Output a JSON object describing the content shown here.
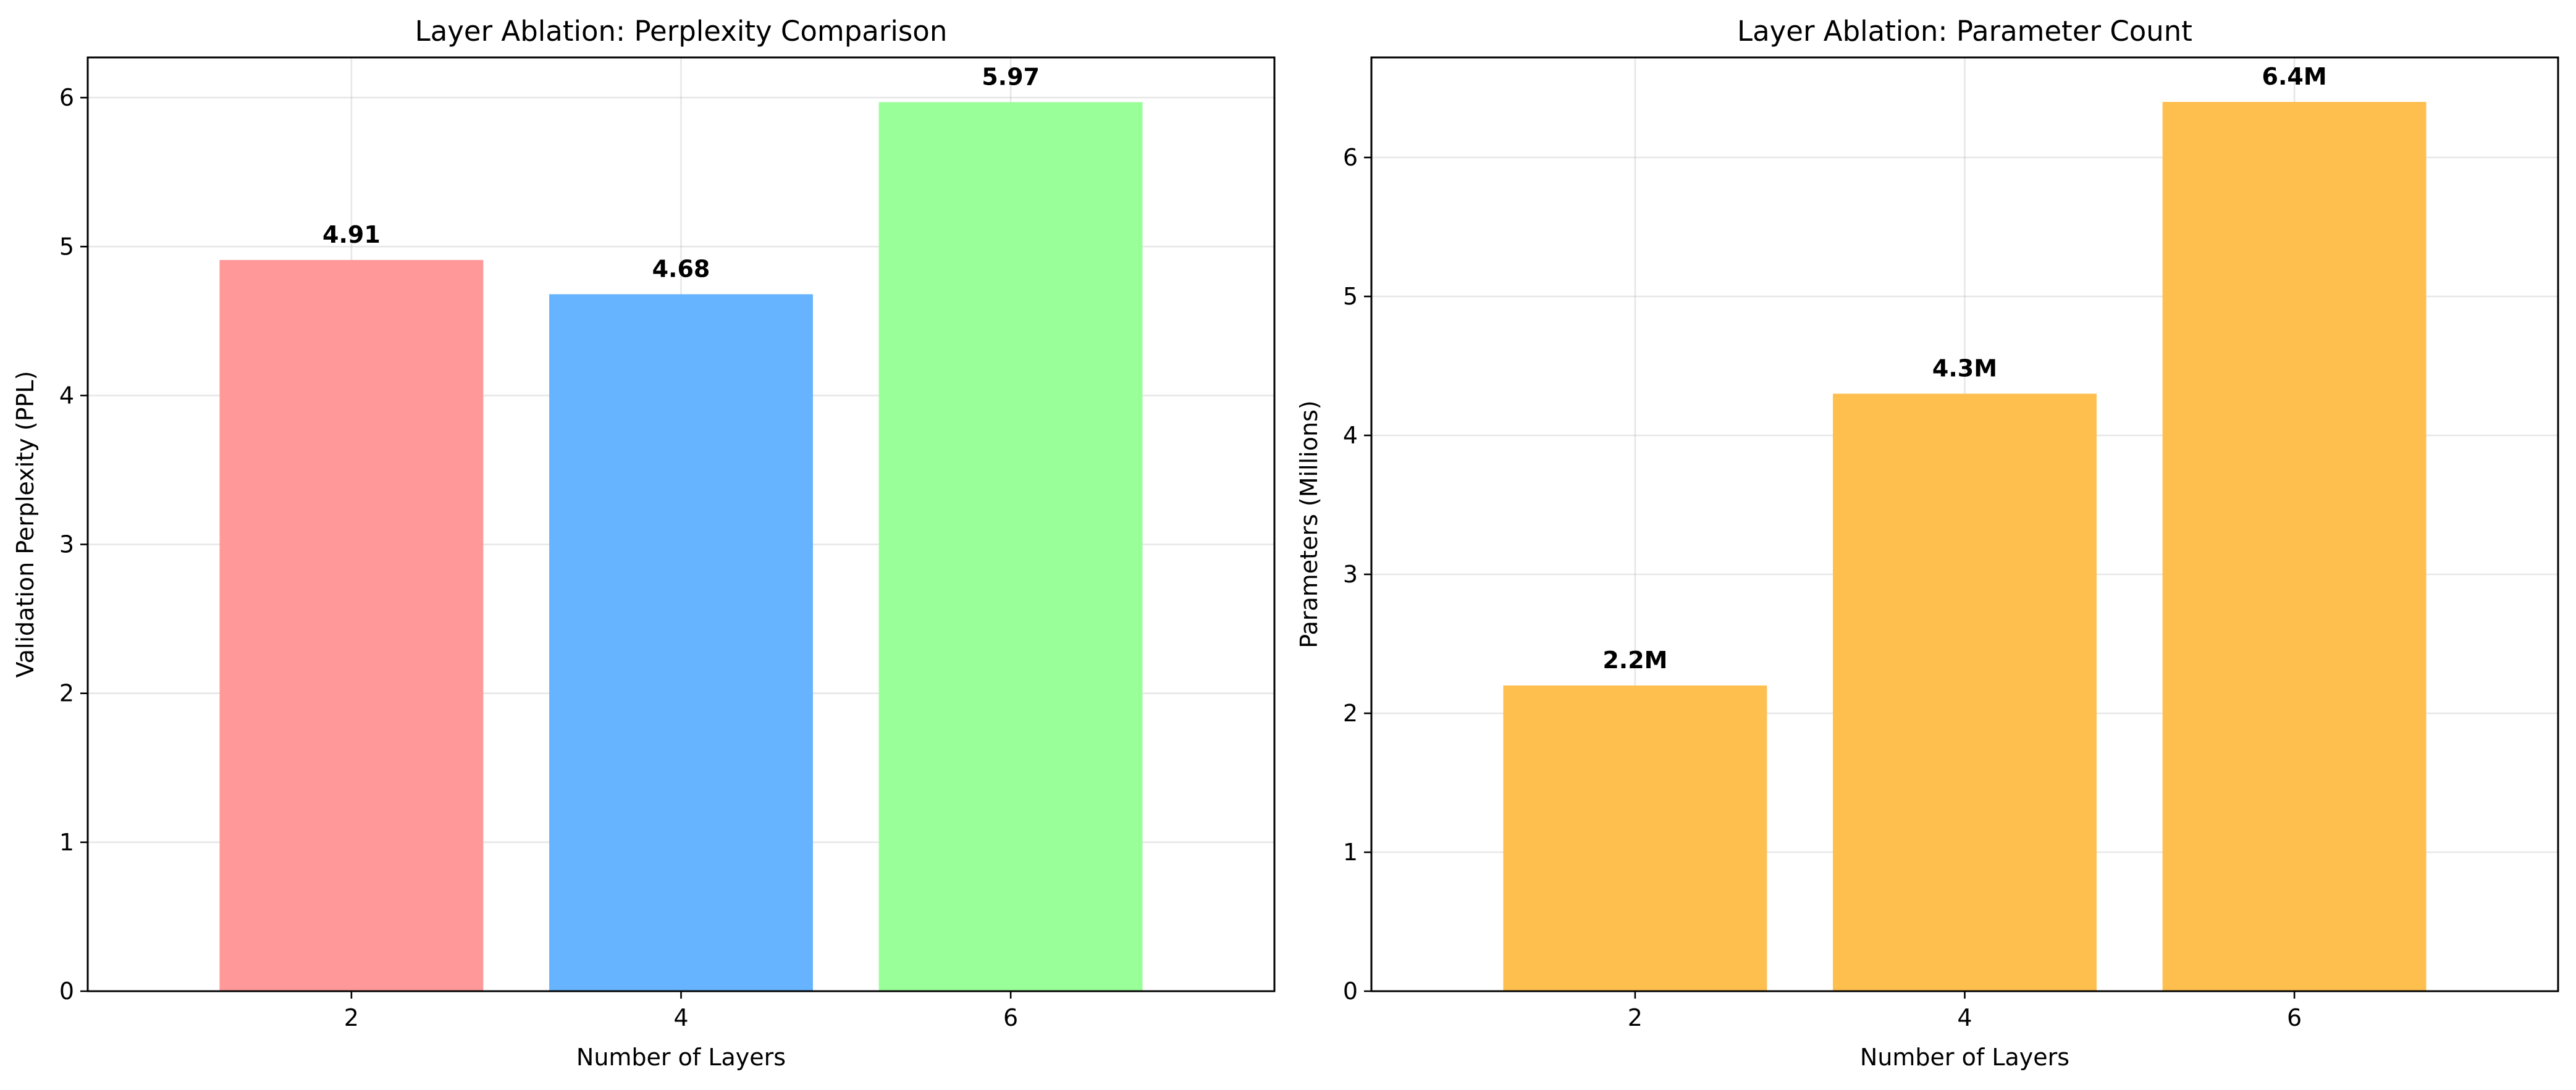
{
  "chart_data": [
    {
      "type": "bar",
      "title": "Layer Ablation: Perplexity Comparison",
      "xlabel": "Number of Layers",
      "ylabel": "Validation Perplexity (PPL)",
      "categories": [
        "2",
        "4",
        "6"
      ],
      "values": [
        4.91,
        4.68,
        5.97
      ],
      "value_labels": [
        "4.91",
        "4.68",
        "5.97"
      ],
      "colors": [
        "#ff9999",
        "#66b3ff",
        "#99ff99"
      ],
      "ylim": [
        0,
        6.27
      ],
      "yticks": [
        0,
        1,
        2,
        3,
        4,
        5,
        6
      ],
      "ytick_labels": [
        "0",
        "1",
        "2",
        "3",
        "4",
        "5",
        "6"
      ],
      "grid": true
    },
    {
      "type": "bar",
      "title": "Layer Ablation: Parameter Count",
      "xlabel": "Number of Layers",
      "ylabel": "Parameters (Millions)",
      "categories": [
        "2",
        "4",
        "6"
      ],
      "values": [
        2.2,
        4.3,
        6.4
      ],
      "value_labels": [
        "2.2M",
        "4.3M",
        "6.4M"
      ],
      "colors": [
        "#ffbf4f",
        "#ffbf4f",
        "#ffbf4f"
      ],
      "ylim": [
        0,
        6.72
      ],
      "yticks": [
        0,
        1,
        2,
        3,
        4,
        5,
        6
      ],
      "ytick_labels": [
        "0",
        "1",
        "2",
        "3",
        "4",
        "5",
        "6"
      ],
      "grid": true
    }
  ]
}
